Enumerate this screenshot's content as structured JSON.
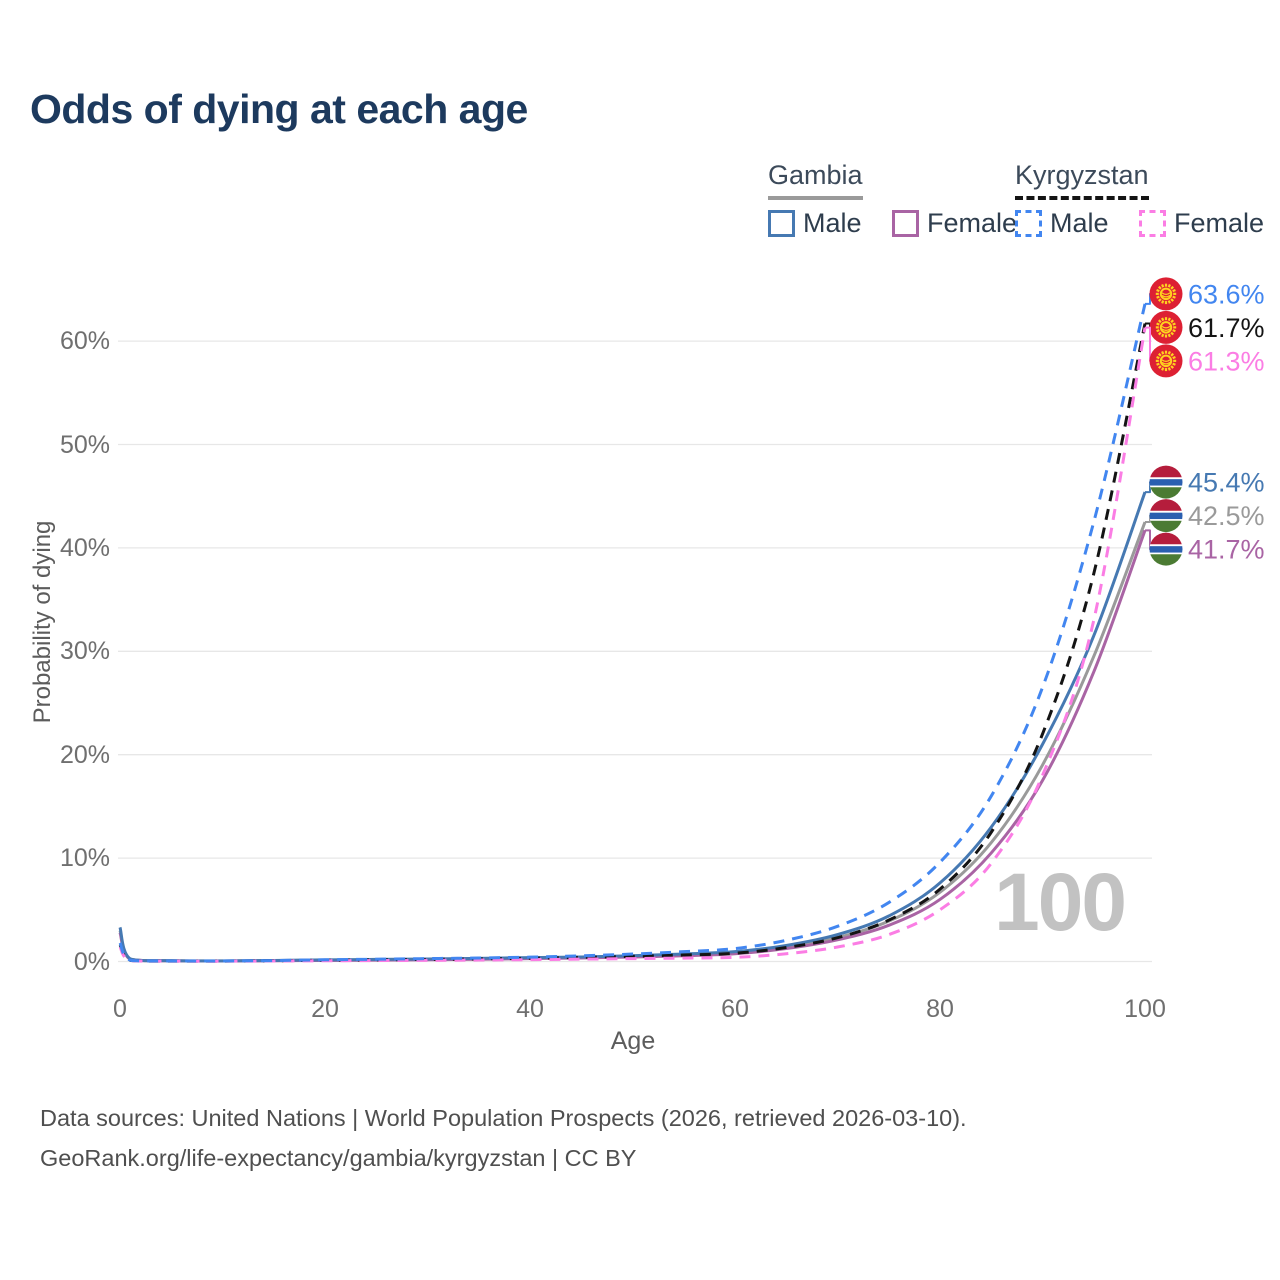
{
  "title": "Odds of dying at each age",
  "watermark_age": "100",
  "legend": {
    "groups": [
      {
        "country": "Gambia",
        "line_style": "solid",
        "underline_color": "#9a9a9a",
        "items": [
          {
            "label": "Male",
            "color": "#4679b2"
          },
          {
            "label": "Female",
            "color": "#a964a4"
          }
        ]
      },
      {
        "country": "Kyrgyzstan",
        "line_style": "dashed",
        "underline_color": "#141414",
        "items": [
          {
            "label": "Male",
            "color": "#4286f0"
          },
          {
            "label": "Female",
            "color": "#fb7de4"
          }
        ]
      }
    ]
  },
  "footer": {
    "line1": "Data sources: United Nations | World Population Prospects (2026, retrieved 2026-03-10).",
    "line2": "GeoRank.org/life-expectancy/gambia/kyrgyzstan | CC BY"
  },
  "chart_data": {
    "type": "line",
    "title": "Odds of dying at each age",
    "xlabel": "Age",
    "ylabel": "Probability of dying",
    "xlim": [
      0,
      100
    ],
    "ylim": [
      0,
      66
    ],
    "x_ticks": [
      0,
      20,
      40,
      60,
      80,
      100
    ],
    "y_ticks": [
      "0%",
      "10%",
      "20%",
      "30%",
      "40%",
      "50%",
      "60%"
    ],
    "grid": "horizontal-only",
    "gridline_color": "#e7e7e7",
    "ages": [
      0,
      1,
      5,
      10,
      15,
      20,
      25,
      30,
      35,
      40,
      45,
      50,
      55,
      60,
      65,
      70,
      75,
      80,
      85,
      90,
      95,
      100
    ],
    "series": [
      {
        "id": "gambia-total",
        "name": "Gambia Both sexes",
        "color": "#9a9a9a",
        "dash": false,
        "flag": "gambia",
        "end_label": "42.5%",
        "values": [
          3.0,
          0.23,
          0.07,
          0.05,
          0.08,
          0.13,
          0.17,
          0.21,
          0.26,
          0.33,
          0.4,
          0.5,
          0.65,
          0.85,
          1.4,
          2.3,
          3.9,
          6.7,
          11.5,
          19.0,
          29.5,
          42.5
        ]
      },
      {
        "id": "gambia-female",
        "name": "Gambia Female",
        "color": "#a964a4",
        "dash": false,
        "flag": "gambia",
        "end_label": "41.7%",
        "values": [
          2.8,
          0.21,
          0.07,
          0.05,
          0.07,
          0.1,
          0.13,
          0.17,
          0.22,
          0.28,
          0.34,
          0.43,
          0.56,
          0.75,
          1.25,
          2.1,
          3.5,
          6.0,
          10.5,
          17.5,
          28.0,
          41.7
        ]
      },
      {
        "id": "gambia-male",
        "name": "Gambia Male",
        "color": "#4679b2",
        "dash": false,
        "flag": "gambia",
        "end_label": "45.4%",
        "values": [
          3.3,
          0.25,
          0.08,
          0.06,
          0.1,
          0.16,
          0.2,
          0.24,
          0.3,
          0.38,
          0.44,
          0.56,
          0.73,
          0.95,
          1.55,
          2.6,
          4.4,
          7.6,
          13.0,
          21.0,
          31.5,
          45.4
        ]
      },
      {
        "id": "kyrgyzstan-total",
        "name": "Kyrgyzstan Both sexes",
        "color": "#141414",
        "dash": true,
        "flag": "kyrgyzstan",
        "end_label": "61.7%",
        "values": [
          1.6,
          0.11,
          0.04,
          0.04,
          0.07,
          0.12,
          0.16,
          0.2,
          0.25,
          0.31,
          0.4,
          0.5,
          0.63,
          0.8,
          1.35,
          2.3,
          4.0,
          7.0,
          12.5,
          22.0,
          37.5,
          61.7
        ]
      },
      {
        "id": "kyrgyzstan-female",
        "name": "Kyrgyzstan Female",
        "color": "#fb7de4",
        "dash": true,
        "flag": "kyrgyzstan",
        "end_label": "61.3%",
        "values": [
          1.4,
          0.1,
          0.04,
          0.03,
          0.05,
          0.07,
          0.09,
          0.11,
          0.14,
          0.18,
          0.23,
          0.28,
          0.33,
          0.4,
          0.75,
          1.4,
          2.6,
          5.0,
          9.5,
          18.0,
          33.0,
          61.3
        ]
      },
      {
        "id": "kyrgyzstan-male",
        "name": "Kyrgyzstan Male",
        "color": "#4286f0",
        "dash": true,
        "flag": "kyrgyzstan",
        "end_label": "63.6%",
        "values": [
          1.8,
          0.12,
          0.05,
          0.05,
          0.09,
          0.17,
          0.22,
          0.28,
          0.34,
          0.42,
          0.55,
          0.72,
          0.95,
          1.25,
          2.05,
          3.4,
          5.7,
          9.6,
          16.0,
          26.5,
          42.5,
          63.6
        ]
      }
    ],
    "flag_colors": {
      "kyrgyzstan": {
        "field": "#dd2033",
        "sun": "#ffd21f"
      },
      "gambia": {
        "red": "#b51d3c",
        "blue": "#2a5fb0",
        "green": "#4b7b33",
        "white": "#ffffff"
      }
    }
  }
}
